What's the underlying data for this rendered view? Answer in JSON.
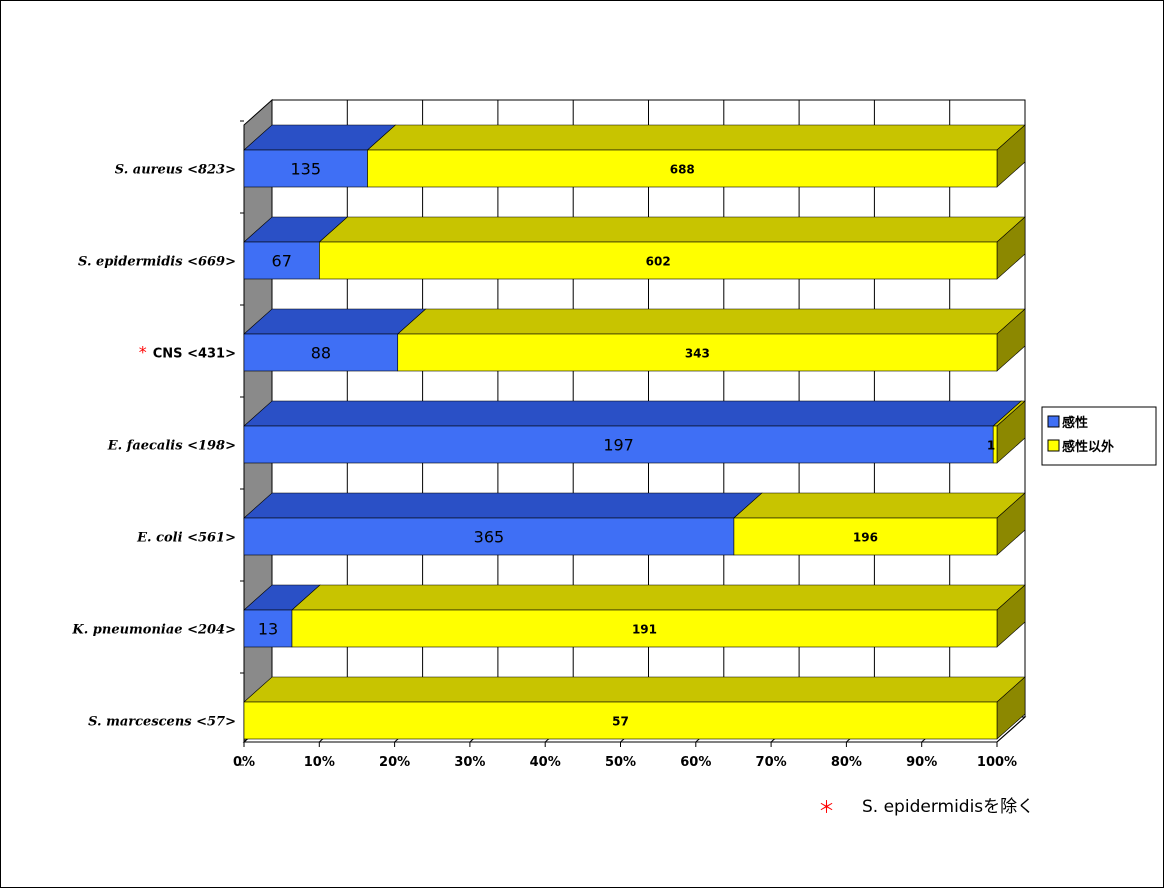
{
  "chart_data": {
    "type": "bar",
    "orientation": "horizontal",
    "stacked": "percent",
    "categories": [
      "S. aureus <823>",
      "S. epidermidis <669>",
      "CNS <431>",
      "E. faecalis <198>",
      "E. coli <561>",
      "K. pneumoniae <204>",
      "S. marcescens <57>"
    ],
    "category_markers": [
      "",
      "",
      "*",
      "",
      "",
      "",
      ""
    ],
    "series": [
      {
        "name": "感性",
        "values": [
          135,
          67,
          88,
          197,
          365,
          13,
          0
        ],
        "labels": [
          "135",
          "67",
          "88",
          "197",
          "365",
          "13",
          ""
        ]
      },
      {
        "name": "感性以外",
        "values": [
          688,
          602,
          343,
          1,
          196,
          191,
          57
        ],
        "labels": [
          "688",
          "602",
          "343",
          "1",
          "196",
          "191",
          "57"
        ]
      }
    ],
    "x_ticks": [
      "0%",
      "10%",
      "20%",
      "30%",
      "40%",
      "50%",
      "60%",
      "70%",
      "80%",
      "90%",
      "100%"
    ],
    "xlim": [
      0,
      100
    ],
    "grid": true,
    "legend_position": "right",
    "colors": {
      "series0_front": "#3f6ff5",
      "series0_top": "#2a50c6",
      "series1_front": "#ffff00",
      "series1_top": "#c8c400",
      "series1_side": "#8c8800",
      "wall": "#8a8a8a",
      "marker": "#ff0000"
    }
  },
  "footnote": {
    "marker": "＊",
    "text": "S. epidermidisを除く"
  }
}
